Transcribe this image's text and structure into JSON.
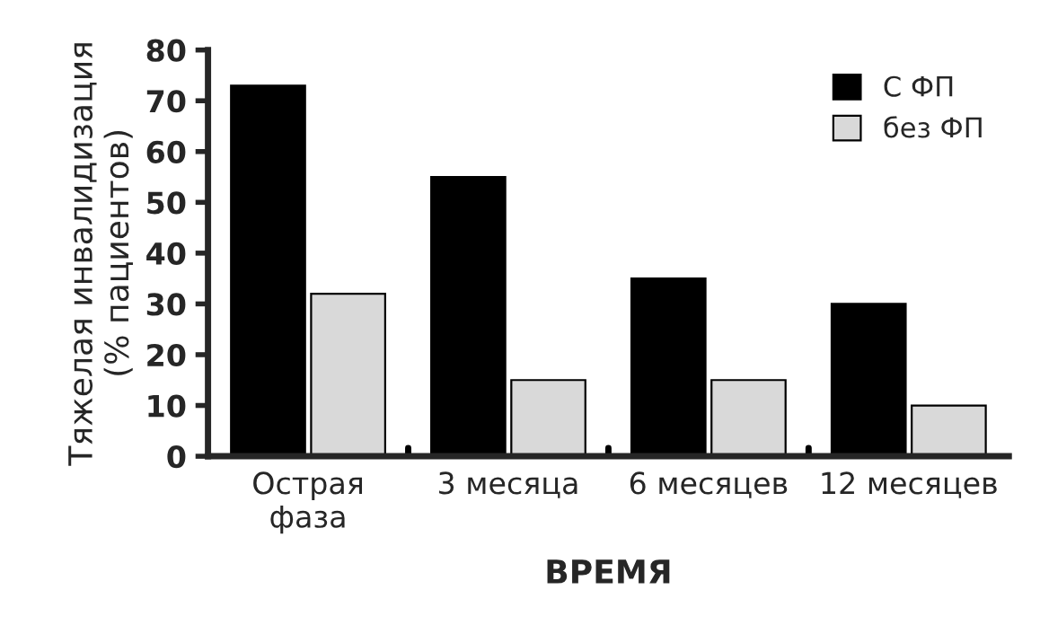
{
  "chart_data": {
    "type": "bar",
    "xlabel": "ВРЕМЯ",
    "ylabel": "Тяжелая инвалидизация\n(% пациентов)",
    "categories": [
      "Острая\nфаза",
      "3 месяца",
      "6 месяцев",
      "12 месяцев"
    ],
    "series": [
      {
        "name": "С ФП",
        "color": "#000000",
        "values": [
          73,
          55,
          35,
          30
        ]
      },
      {
        "name": "без ФП",
        "color": "#d9d9d9",
        "values": [
          32,
          15,
          15,
          10
        ]
      }
    ],
    "ylim": [
      0,
      80
    ],
    "yticks": [
      0,
      10,
      20,
      30,
      40,
      50,
      60,
      70,
      80
    ],
    "grid": false,
    "legend": "top right"
  }
}
